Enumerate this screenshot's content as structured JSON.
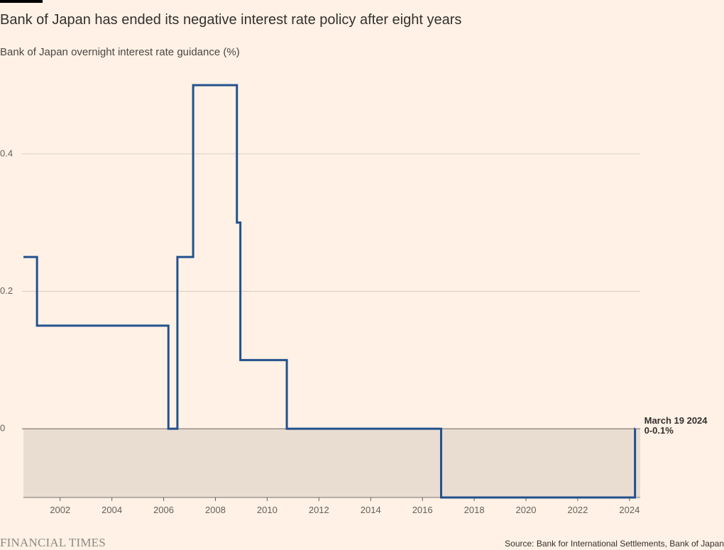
{
  "header": {
    "title": "Bank of Japan has ended its negative interest rate policy after eight years",
    "subtitle": "Bank of Japan overnight interest rate guidance (%)"
  },
  "footer": {
    "brand": "FINANCIAL TIMES",
    "source": "Source: Bank for International Settlements, Bank of Japan"
  },
  "colors": {
    "background": "#fff1e5",
    "line": "#22518d",
    "negative_area": "#e9ddd1",
    "gridline": "#d6cbc1"
  },
  "chart_data": {
    "type": "line",
    "step": true,
    "title": "Bank of Japan has ended its negative interest rate policy after eight years",
    "subtitle": "Bank of Japan overnight interest rate guidance (%)",
    "xlim": [
      "2000-08-01",
      "2024-06-01"
    ],
    "ylim": [
      -0.1,
      0.5
    ],
    "grid": true,
    "x_ticks": [
      "2002",
      "2004",
      "2006",
      "2008",
      "2010",
      "2012",
      "2014",
      "2016",
      "2018",
      "2020",
      "2022",
      "2024"
    ],
    "y_ticks": [
      {
        "value": 0,
        "label": "0"
      },
      {
        "value": 0.2,
        "label": "0.2"
      },
      {
        "value": 0.4,
        "label": "0.4"
      }
    ],
    "shaded_region": {
      "from": -0.1,
      "to": 0
    },
    "series": [
      {
        "points": [
          {
            "x": "2000-08-01",
            "y": 0.25
          },
          {
            "x": "2001-02-09",
            "y": 0.15
          },
          {
            "x": "2006-03-09",
            "y": 0
          },
          {
            "x": "2006-07-14",
            "y": 0.25
          },
          {
            "x": "2007-02-21",
            "y": 0.5
          },
          {
            "x": "2008-10-31",
            "y": 0.3
          },
          {
            "x": "2008-12-19",
            "y": 0.1
          },
          {
            "x": "2010-10-05",
            "y": 0
          },
          {
            "x": "2016-09-21",
            "y": -0.1
          },
          {
            "x": "2024-03-19",
            "y": 0
          },
          {
            "x": "2024-03-20",
            "y": 0
          }
        ]
      }
    ],
    "annotations": [
      {
        "x": "2024-03-19",
        "y": 0,
        "lines": [
          "March 19 2024",
          "0-0.1%"
        ]
      }
    ]
  }
}
